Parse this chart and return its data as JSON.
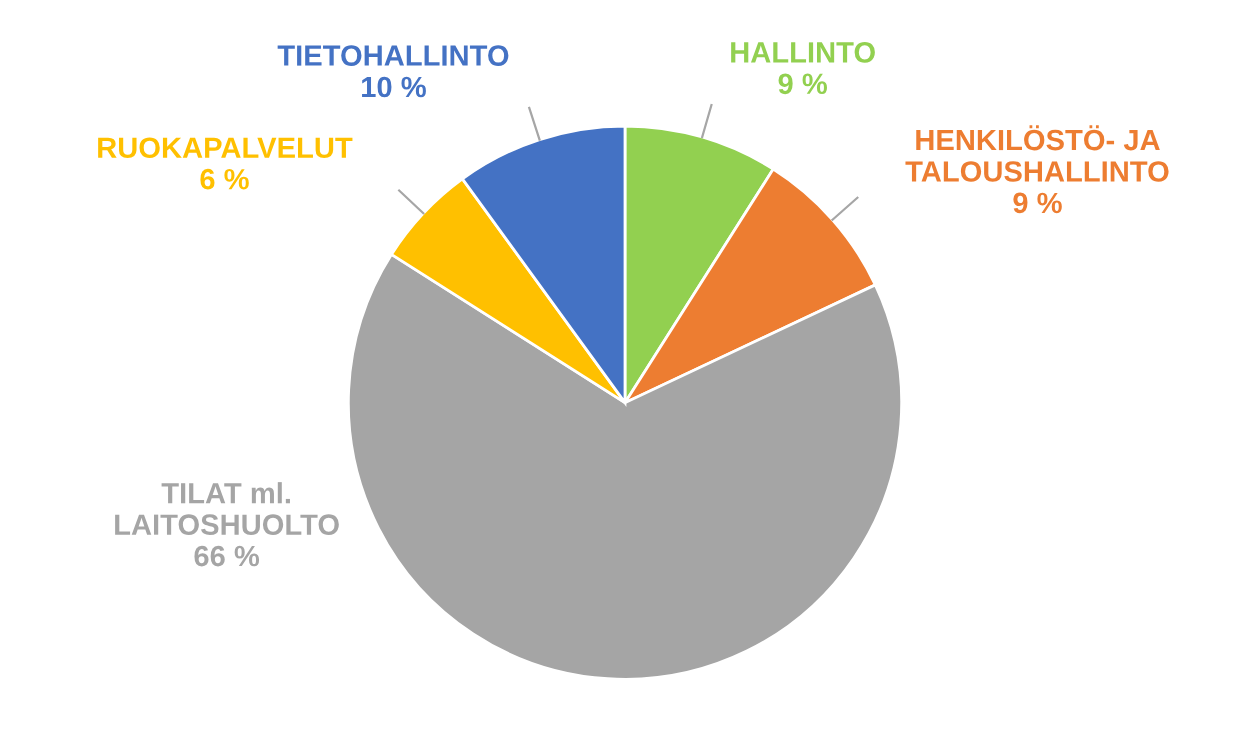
{
  "chart_data": {
    "type": "pie",
    "categories": [
      "HALLINTO",
      "HENKILÖSTÖ- JA\nTALOUSHALLINTO",
      "TILAT ml.\nLAITOSHUOLTO",
      "RUOKAPALVELUT",
      "TIETOHALLINTO"
    ],
    "values": [
      9,
      9,
      66,
      6,
      10
    ],
    "value_labels": [
      "9 %",
      "9 %",
      "66 %",
      "6 %",
      "10 %"
    ],
    "colors": [
      "#92d050",
      "#ed7d31",
      "#a5a5a5",
      "#ffc000",
      "#4472c4"
    ],
    "legend": false
  }
}
